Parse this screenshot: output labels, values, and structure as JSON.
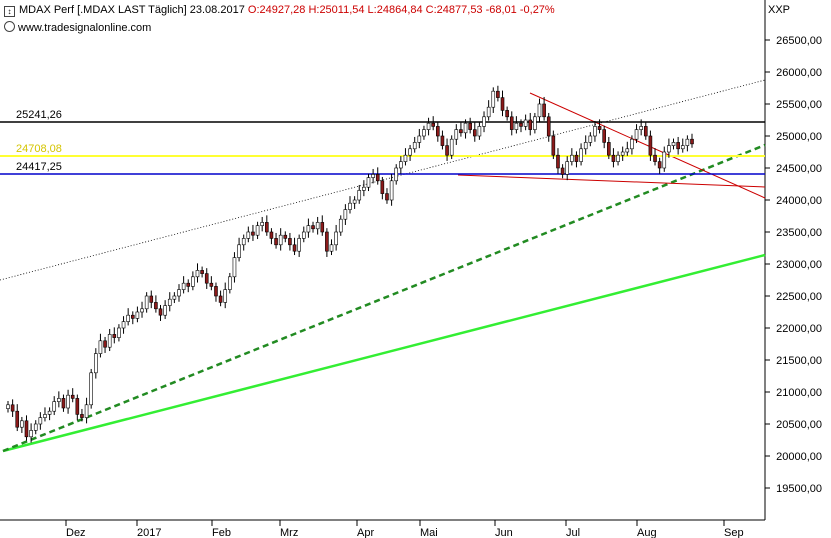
{
  "header": {
    "title": "MDAX Perf [.MDAX LAST Täglich]",
    "date": "23.08.2017",
    "ohlc": "O:24927,28 H:25011,54 L:24864,84 C:24877,53 -68,01 -0,27%",
    "source": "www.tradesignalonline.com",
    "currency": "XXP"
  },
  "colors": {
    "bull_candle": "#ffffff",
    "bear_candle": "#8b1a1a",
    "level_black": "#000000",
    "level_yellow": "#ffff33",
    "level_blue": "#0000cc",
    "trend_green": "#33ee33",
    "trend_dashed": "#228b22",
    "channel_red": "#cc0000"
  },
  "chart_data": {
    "type": "candlestick",
    "title": "MDAX Perf [.MDAX LAST Täglich]",
    "x_labels": [
      "Dez",
      "2017",
      "Feb",
      "Mrz",
      "Apr",
      "Mai",
      "Jun",
      "Jul",
      "Aug",
      "Sep"
    ],
    "ylim": [
      19000,
      27000
    ],
    "y_ticks": [
      "19500,00",
      "20000,00",
      "20500,00",
      "21000,00",
      "21500,00",
      "22000,00",
      "22500,00",
      "23000,00",
      "23500,00",
      "24000,00",
      "24500,00",
      "25000,00",
      "25500,00",
      "26000,00",
      "26500,00"
    ],
    "levels": [
      {
        "label": "25241,26",
        "value": 25241.26,
        "color": "#000000"
      },
      {
        "label": "24708,08",
        "value": 24708.08,
        "color": "#ffff33"
      },
      {
        "label": "24417,25",
        "value": 24417.25,
        "color": "#0000cc"
      }
    ],
    "closes": [
      20800,
      20700,
      20450,
      20550,
      20300,
      20400,
      20500,
      20600,
      20650,
      20700,
      20850,
      20900,
      20750,
      20950,
      20900,
      20650,
      20600,
      20800,
      21300,
      21600,
      21800,
      21700,
      21900,
      21850,
      22000,
      22100,
      22200,
      22150,
      22250,
      22300,
      22500,
      22400,
      22300,
      22200,
      22350,
      22450,
      22500,
      22600,
      22700,
      22650,
      22800,
      22900,
      22850,
      22700,
      22650,
      22500,
      22400,
      22600,
      22800,
      23100,
      23300,
      23400,
      23500,
      23450,
      23600,
      23650,
      23500,
      23400,
      23300,
      23450,
      23400,
      23300,
      23200,
      23400,
      23500,
      23600,
      23550,
      23650,
      23500,
      23200,
      23300,
      23500,
      23700,
      23850,
      23950,
      24000,
      24150,
      24200,
      24350,
      24400,
      24300,
      24100,
      24000,
      24300,
      24500,
      24600,
      24700,
      24800,
      24900,
      25000,
      25100,
      25200,
      25150,
      25000,
      24850,
      24700,
      24950,
      25100,
      25050,
      25200,
      25100,
      25000,
      25150,
      25300,
      25450,
      25700,
      25600,
      25400,
      25300,
      25100,
      25200,
      25150,
      25250,
      25100,
      25300,
      25500,
      25300,
      25000,
      24700,
      24500,
      24400,
      24600,
      24700,
      24600,
      24800,
      24900,
      25000,
      25150,
      25100,
      24900,
      24700,
      24600,
      24700,
      24750,
      24800,
      24950,
      25100,
      25150,
      25000,
      24700,
      24600,
      24500,
      24750,
      24850,
      24900,
      24800,
      24850,
      24950,
      24877
    ]
  }
}
